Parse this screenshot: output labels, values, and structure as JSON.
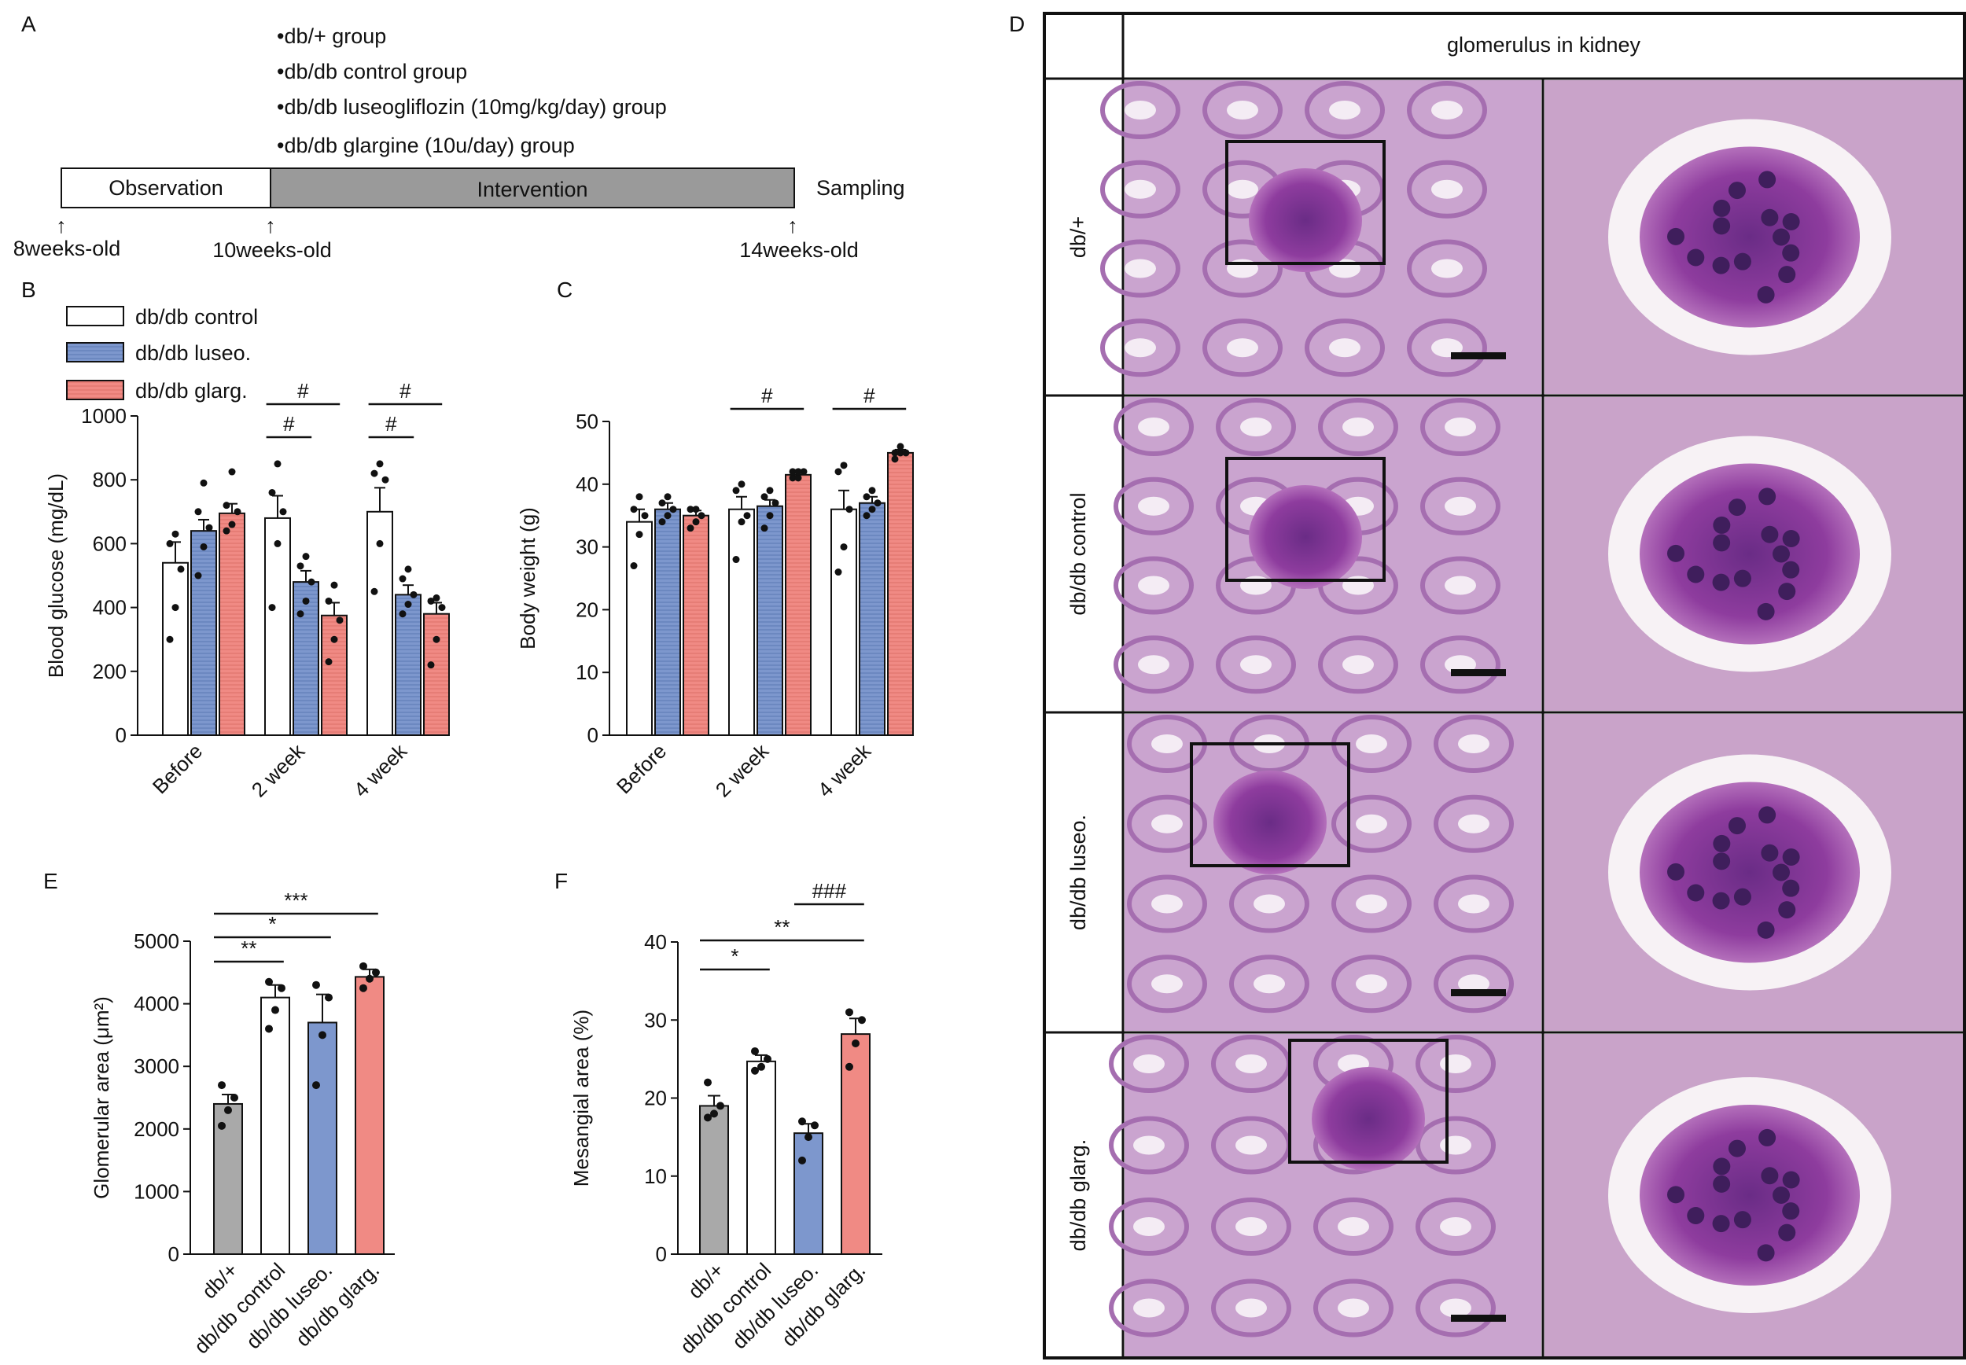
{
  "panel_labels": {
    "A": "A",
    "B": "B",
    "C": "C",
    "D": "D",
    "E": "E",
    "F": "F"
  },
  "timeline": {
    "groups": [
      "db/+ group",
      "db/db control group",
      "db/db luseogliflozin (10mg/kg/day) group",
      "db/db glargine (10u/day) group"
    ],
    "observation": "Observation",
    "intervention": "Intervention",
    "sampling": "Sampling",
    "ages": [
      "8weeks-old",
      "10weeks-old",
      "14weeks-old"
    ]
  },
  "legend": [
    "db/db control",
    "db/db luseo.",
    "db/db glarg."
  ],
  "colors": {
    "control": "#ffffff",
    "luseo": "#7d97cd",
    "glarg": "#f08a84",
    "dbplus": "#a9a9a9"
  },
  "histology": {
    "header": "glomerulus in kidney",
    "rows": [
      "db/+",
      "db/db control",
      "db/db luseo.",
      "db/db glarg."
    ]
  },
  "chart_data": [
    {
      "id": "B",
      "type": "bar",
      "ylabel": "Blood glucose (mg/dL)",
      "ylim": [
        0,
        1000
      ],
      "yticks": [
        "0",
        "200",
        "400",
        "600",
        "800",
        "1000"
      ],
      "categories": [
        "Before",
        "2 week",
        "4 week"
      ],
      "series": [
        {
          "name": "db/db control",
          "values": [
            540,
            680,
            700
          ],
          "err": [
            65,
            70,
            75
          ],
          "points": [
            [
              300,
              400,
              520,
              600,
              630
            ],
            [
              400,
              600,
              700,
              760,
              850
            ],
            [
              450,
              600,
              800,
              820,
              850
            ]
          ]
        },
        {
          "name": "db/db luseo.",
          "values": [
            640,
            480,
            440
          ],
          "err": [
            35,
            35,
            30
          ],
          "points": [
            [
              500,
              590,
              650,
              700,
              790
            ],
            [
              380,
              420,
              480,
              530,
              560
            ],
            [
              380,
              410,
              440,
              490,
              520
            ]
          ]
        },
        {
          "name": "db/db glarg.",
          "values": [
            695,
            375,
            380
          ],
          "err": [
            30,
            40,
            35
          ],
          "points": [
            [
              640,
              660,
              700,
              720,
              825
            ],
            [
              230,
              300,
              360,
              420,
              470
            ],
            [
              220,
              300,
              400,
              420,
              430
            ]
          ]
        }
      ],
      "sig": [
        {
          "label": "#",
          "from": [
            1,
            0
          ],
          "to": [
            1,
            2
          ]
        },
        {
          "label": "#",
          "from": [
            1,
            0
          ],
          "to": [
            1,
            1
          ]
        },
        {
          "label": "#",
          "from": [
            2,
            0
          ],
          "to": [
            2,
            2
          ]
        },
        {
          "label": "#",
          "from": [
            2,
            0
          ],
          "to": [
            2,
            1
          ]
        }
      ]
    },
    {
      "id": "C",
      "type": "bar",
      "ylabel": "Body weight (g)",
      "ylim": [
        0,
        50
      ],
      "yticks": [
        "0",
        "10",
        "20",
        "30",
        "40",
        "50"
      ],
      "categories": [
        "Before",
        "2 week",
        "4 week"
      ],
      "series": [
        {
          "name": "db/db control",
          "values": [
            34,
            36,
            36
          ],
          "err": [
            2,
            2,
            3
          ],
          "points": [
            [
              27,
              32,
              35,
              36,
              38
            ],
            [
              28,
              34,
              35,
              39,
              40
            ],
            [
              26,
              30,
              36,
              42,
              43
            ]
          ]
        },
        {
          "name": "db/db luseo.",
          "values": [
            36,
            36.5,
            37
          ],
          "err": [
            1,
            1,
            1
          ],
          "points": [
            [
              34,
              35,
              36,
              37,
              38
            ],
            [
              33,
              35,
              37,
              38,
              39
            ],
            [
              35,
              36,
              37,
              38,
              39
            ]
          ]
        },
        {
          "name": "db/db glarg.",
          "values": [
            35,
            41.5,
            45
          ],
          "err": [
            0.8,
            0.5,
            0.5
          ],
          "points": [
            [
              33,
              34,
              35,
              36,
              36
            ],
            [
              41,
              41,
              42,
              42,
              42
            ],
            [
              44,
              45,
              45,
              45,
              46
            ]
          ]
        }
      ],
      "sig": [
        {
          "label": "#",
          "from": [
            1,
            0
          ],
          "to": [
            1,
            2
          ]
        },
        {
          "label": "#",
          "from": [
            2,
            0
          ],
          "to": [
            2,
            2
          ]
        }
      ]
    },
    {
      "id": "E",
      "type": "bar",
      "ylabel": "Glomerular area (μm²)",
      "ylim": [
        0,
        5000
      ],
      "yticks": [
        "0",
        "1000",
        "2000",
        "3000",
        "4000",
        "5000"
      ],
      "categories": [
        "db/+",
        "db/db control",
        "db/db luseo.",
        "db/db glarg."
      ],
      "values": [
        2400,
        4100,
        3700,
        4430
      ],
      "err": [
        150,
        200,
        450,
        120
      ],
      "points": [
        [
          2050,
          2300,
          2500,
          2700
        ],
        [
          3600,
          3900,
          4250,
          4350
        ],
        [
          2700,
          3500,
          4100,
          4300
        ],
        [
          4250,
          4400,
          4500,
          4600
        ]
      ],
      "sig": [
        {
          "label": "***",
          "from": 0,
          "to": 3
        },
        {
          "label": "*",
          "from": 0,
          "to": 2
        },
        {
          "label": "**",
          "from": 0,
          "to": 1
        }
      ]
    },
    {
      "id": "F",
      "type": "bar",
      "ylabel": "Mesangial area (%)",
      "ylim": [
        0,
        40
      ],
      "yticks": [
        "0",
        "10",
        "20",
        "30",
        "40"
      ],
      "categories": [
        "db/+",
        "db/db control",
        "db/db luseo.",
        "db/db glarg."
      ],
      "values": [
        19,
        24.7,
        15.5,
        28.2
      ],
      "err": [
        1.3,
        0.8,
        1.2,
        2
      ],
      "points": [
        [
          17.5,
          18,
          19,
          22
        ],
        [
          23.5,
          24,
          25,
          26
        ],
        [
          12,
          15,
          16.5,
          17
        ],
        [
          24,
          27,
          30,
          31
        ]
      ],
      "sig": [
        {
          "label": "###",
          "from": 2,
          "to": 3
        },
        {
          "label": "**",
          "from": 0,
          "to": 3
        },
        {
          "label": "*",
          "from": 0,
          "to": 1
        }
      ]
    }
  ]
}
